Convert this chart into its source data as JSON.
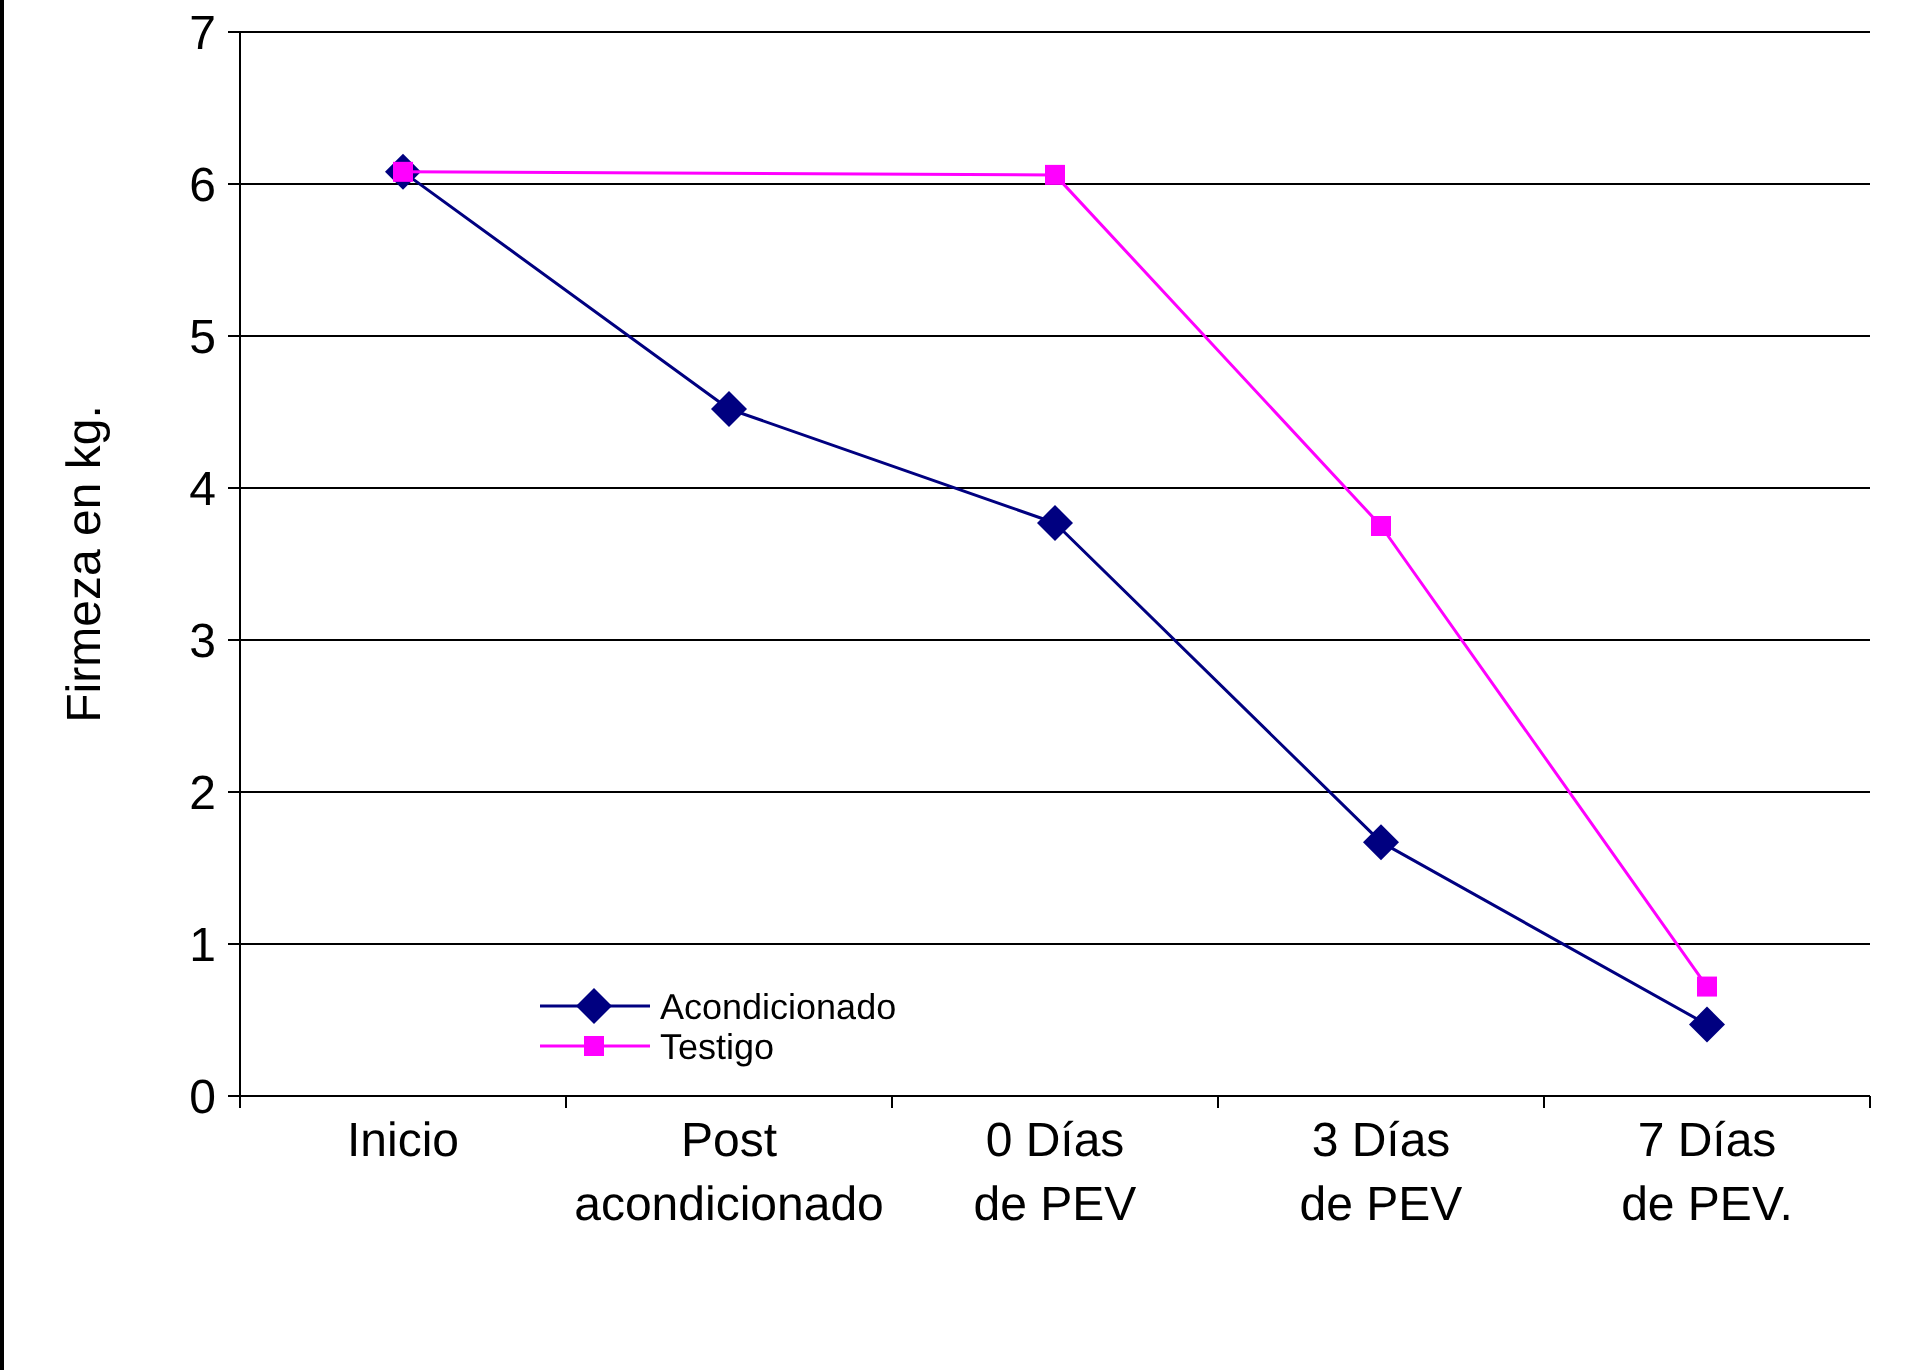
{
  "chart_data": {
    "type": "line",
    "ylabel": "Firmeza en kg.",
    "categories": [
      "Inicio",
      "Post acondicionado",
      "0 Días de PEV",
      "3 Días de PEV",
      "7 Días de PEV."
    ],
    "ylim": [
      0,
      7
    ],
    "yticks": [
      0,
      1,
      2,
      3,
      4,
      5,
      6,
      7
    ],
    "grid": "y",
    "legend": "bottom left",
    "series": [
      {
        "name": "Acondicionado",
        "color": "#000080",
        "marker": "diamond",
        "values": [
          6.08,
          4.52,
          3.77,
          1.67,
          0.47
        ]
      },
      {
        "name": "Testigo",
        "color": "#ff00ff",
        "marker": "square",
        "values": [
          6.08,
          null,
          6.06,
          3.75,
          0.72
        ]
      }
    ]
  }
}
